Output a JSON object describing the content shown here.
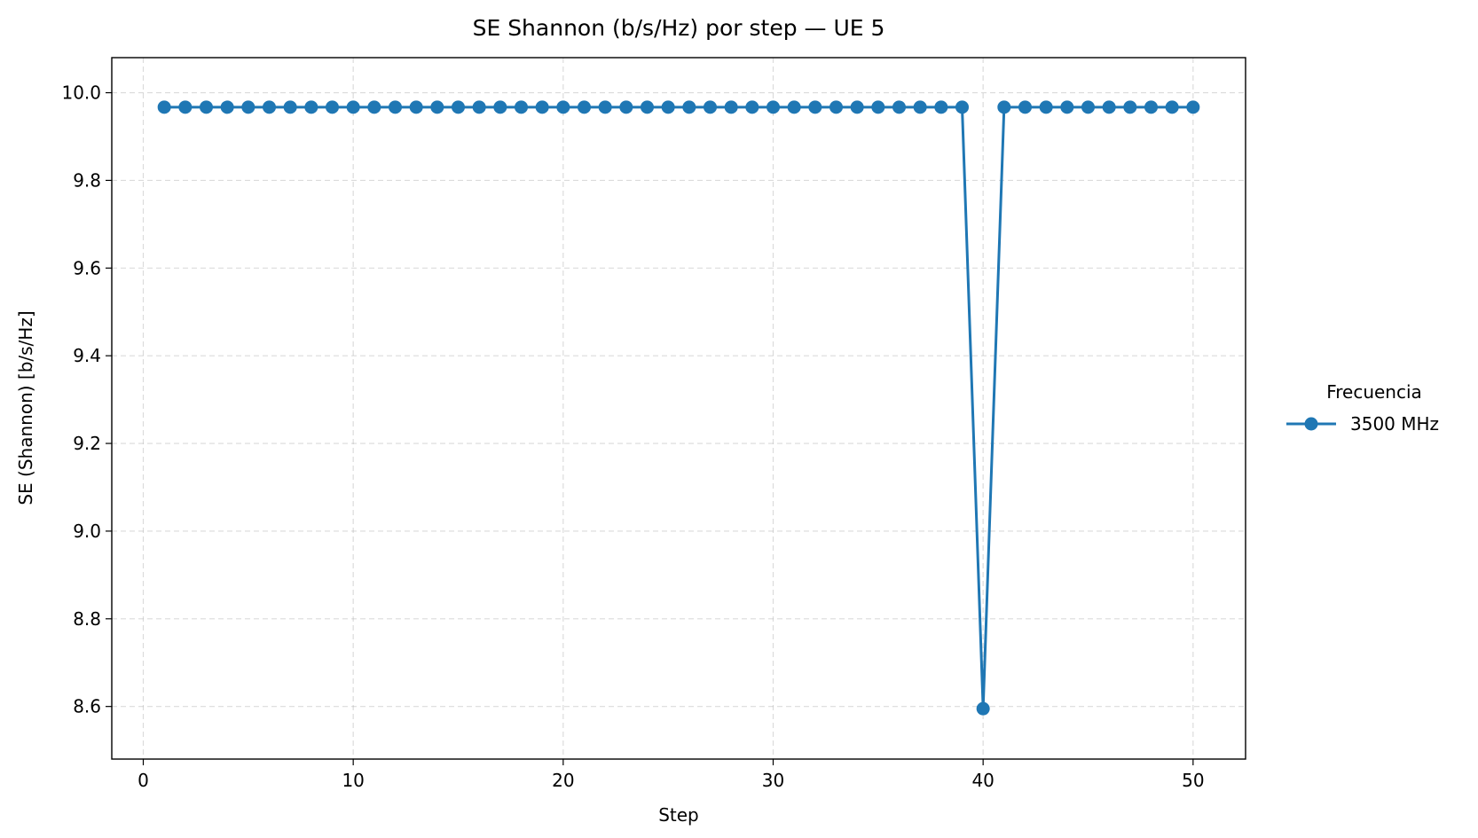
{
  "chart_data": {
    "type": "line",
    "title": "SE Shannon (b/s/Hz) por step — UE 5",
    "xlabel": "Step",
    "ylabel": "SE (Shannon) [b/s/Hz]",
    "xlim": [
      -1.5,
      52.5
    ],
    "ylim": [
      8.48,
      10.08
    ],
    "xticks": [
      0,
      10,
      20,
      30,
      40,
      50
    ],
    "yticks": [
      8.6,
      8.8,
      9.0,
      9.2,
      9.4,
      9.6,
      9.8,
      10.0
    ],
    "xtick_labels": [
      "0",
      "10",
      "20",
      "30",
      "40",
      "50"
    ],
    "ytick_labels": [
      "8.6",
      "8.8",
      "9.0",
      "9.2",
      "9.4",
      "9.6",
      "9.8",
      "10.0"
    ],
    "grid": true,
    "legend": {
      "title": "Frecuencia",
      "placement": "outside-right",
      "entries": [
        "3500 MHz"
      ]
    },
    "series": [
      {
        "name": "3500 MHz",
        "color": "#1f77b4",
        "x": [
          1,
          2,
          3,
          4,
          5,
          6,
          7,
          8,
          9,
          10,
          11,
          12,
          13,
          14,
          15,
          16,
          17,
          18,
          19,
          20,
          21,
          22,
          23,
          24,
          25,
          26,
          27,
          28,
          29,
          30,
          31,
          32,
          33,
          34,
          35,
          36,
          37,
          38,
          39,
          40,
          41,
          42,
          43,
          44,
          45,
          46,
          47,
          48,
          49,
          50
        ],
        "y": [
          9.967,
          9.967,
          9.967,
          9.967,
          9.967,
          9.967,
          9.967,
          9.967,
          9.967,
          9.967,
          9.967,
          9.967,
          9.967,
          9.967,
          9.967,
          9.967,
          9.967,
          9.967,
          9.967,
          9.967,
          9.967,
          9.967,
          9.967,
          9.967,
          9.967,
          9.967,
          9.967,
          9.967,
          9.967,
          9.967,
          9.967,
          9.967,
          9.967,
          9.967,
          9.967,
          9.967,
          9.967,
          9.967,
          9.967,
          8.595,
          9.967,
          9.967,
          9.967,
          9.967,
          9.967,
          9.967,
          9.967,
          9.967,
          9.967,
          9.967
        ]
      }
    ]
  }
}
